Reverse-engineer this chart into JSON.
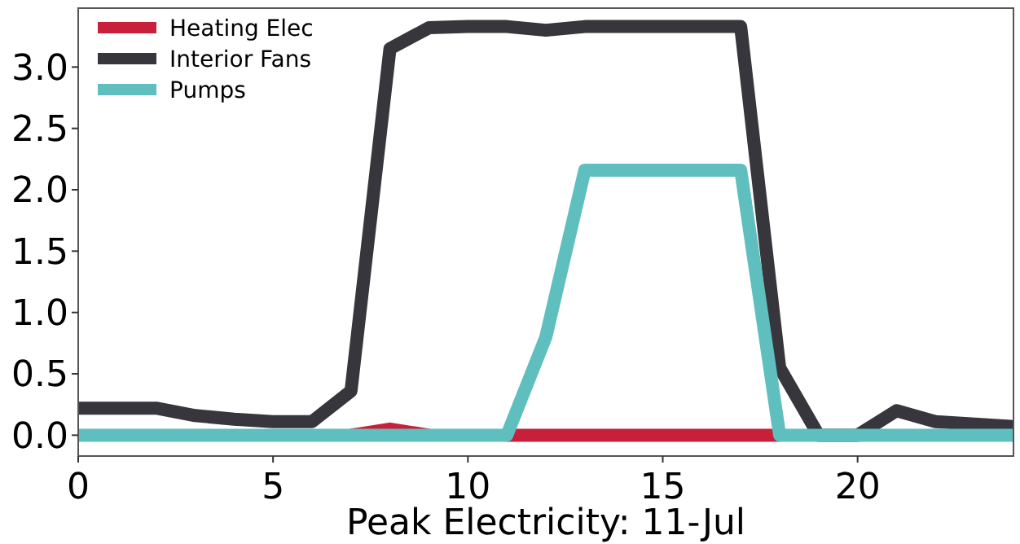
{
  "chart_data": {
    "type": "line",
    "xlabel": "Peak Electricity: 11-Jul",
    "x": [
      0,
      1,
      2,
      3,
      4,
      5,
      6,
      7,
      8,
      9,
      10,
      11,
      12,
      13,
      14,
      15,
      16,
      17,
      18,
      19,
      20,
      21,
      22,
      23,
      24
    ],
    "series": [
      {
        "name": "Heating Elec",
        "color": "#c8203a",
        "values": [
          null,
          null,
          null,
          null,
          null,
          null,
          null,
          0,
          0.05,
          0,
          null,
          0,
          0,
          0,
          0,
          0,
          0,
          0,
          0,
          null,
          null,
          null,
          null,
          null,
          null
        ]
      },
      {
        "name": "Interior Fans",
        "color": "#36363c",
        "values": [
          0.22,
          0.22,
          0.22,
          0.16,
          0.13,
          0.11,
          0.11,
          0.36,
          3.15,
          3.32,
          3.33,
          3.33,
          3.3,
          3.33,
          3.33,
          3.33,
          3.33,
          3.33,
          0.55,
          0,
          0,
          0.2,
          0.11,
          0.09,
          0.07
        ]
      },
      {
        "name": "Pumps",
        "color": "#5fbfbe",
        "values": [
          0,
          0,
          0,
          0,
          0,
          0,
          0,
          0,
          0,
          0,
          0,
          0,
          0.8,
          2.16,
          2.16,
          2.16,
          2.16,
          2.16,
          0,
          0,
          0,
          0,
          0,
          0,
          0
        ]
      }
    ],
    "xlim": [
      0,
      24
    ],
    "xticks": [
      0,
      5,
      10,
      15,
      20
    ],
    "ylim": [
      -0.17,
      3.48
    ],
    "yticks": [
      {
        "value": 0,
        "label": "0.0"
      },
      {
        "value": 0.5,
        "label": "0.5"
      },
      {
        "value": 1,
        "label": "1.0"
      },
      {
        "value": 1.5,
        "label": "1.5"
      },
      {
        "value": 2,
        "label": "2.0"
      },
      {
        "value": 2.5,
        "label": "2.5"
      },
      {
        "value": 3,
        "label": "3.0"
      }
    ],
    "grid": false,
    "legend": "top left",
    "line_style": "solid"
  }
}
